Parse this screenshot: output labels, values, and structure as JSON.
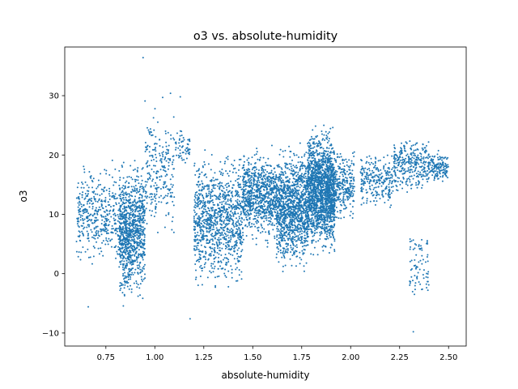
{
  "chart_data": {
    "type": "scatter",
    "title": "o3 vs. absolute-humidity",
    "xlabel": "absolute-humidity",
    "ylabel": "o3",
    "xlim": [
      0.54,
      2.59
    ],
    "ylim": [
      -12.2,
      38.2
    ],
    "xticks": [
      0.75,
      1.0,
      1.25,
      1.5,
      1.75,
      2.0,
      2.25,
      2.5
    ],
    "xtick_labels": [
      "0.75",
      "1.00",
      "1.25",
      "1.50",
      "1.75",
      "2.00",
      "2.25",
      "2.50"
    ],
    "yticks": [
      -10,
      0,
      10,
      20,
      30
    ],
    "ytick_labels": [
      "−10",
      "0",
      "10",
      "20",
      "30"
    ],
    "grid": false,
    "legend": "none",
    "marker_color": "#1f77b4",
    "series": [
      {
        "clusters": [
          {
            "x": [
              0.6,
              0.82
            ],
            "y": [
              0,
              20
            ],
            "n": 420
          },
          {
            "x": [
              0.82,
              0.88
            ],
            "y": [
              -7,
              20
            ],
            "n": 520
          },
          {
            "x": [
              0.88,
              0.95
            ],
            "y": [
              -6,
              21
            ],
            "n": 460
          },
          {
            "x": [
              0.95,
              1.1
            ],
            "y": [
              5,
              29
            ],
            "n": 240
          },
          {
            "x": [
              1.1,
              1.18
            ],
            "y": [
              17,
              25
            ],
            "n": 60
          },
          {
            "x": [
              1.2,
              1.45
            ],
            "y": [
              -4,
              22
            ],
            "n": 1050
          },
          {
            "x": [
              1.45,
              1.62
            ],
            "y": [
              4,
              22
            ],
            "n": 800
          },
          {
            "x": [
              1.62,
              1.78
            ],
            "y": [
              -1,
              23
            ],
            "n": 1150
          },
          {
            "x": [
              1.78,
              1.92
            ],
            "y": [
              2,
              26
            ],
            "n": 1700
          },
          {
            "x": [
              1.92,
              2.02
            ],
            "y": [
              8,
              22
            ],
            "n": 260
          },
          {
            "x": [
              2.05,
              2.22
            ],
            "y": [
              10,
              21
            ],
            "n": 260
          },
          {
            "x": [
              2.22,
              2.4
            ],
            "y": [
              13,
              24
            ],
            "n": 320
          },
          {
            "x": [
              2.4,
              2.5
            ],
            "y": [
              15,
              21
            ],
            "n": 140
          },
          {
            "x": [
              2.3,
              2.4
            ],
            "y": [
              -6,
              9
            ],
            "n": 80
          }
        ],
        "points": [
          {
            "x": 0.94,
            "y": 36.4
          },
          {
            "x": 0.95,
            "y": 29.1
          },
          {
            "x": 1.08,
            "y": 30.4
          },
          {
            "x": 1.04,
            "y": 29.7
          },
          {
            "x": 1.13,
            "y": 29.8
          },
          {
            "x": 1.18,
            "y": -7.6
          },
          {
            "x": 2.32,
            "y": -9.8
          },
          {
            "x": 0.66,
            "y": -5.6
          },
          {
            "x": 0.64,
            "y": 17.6
          }
        ]
      }
    ]
  }
}
